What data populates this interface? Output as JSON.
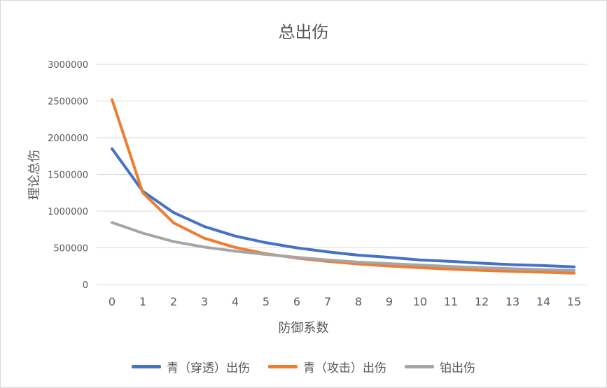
{
  "chart_data": {
    "type": "line",
    "title": "总出伤",
    "xlabel": "防御系数",
    "ylabel": "理论总伤",
    "x": [
      0,
      1,
      2,
      3,
      4,
      5,
      6,
      7,
      8,
      9,
      10,
      11,
      12,
      13,
      14,
      15
    ],
    "ylim": [
      0,
      3000000
    ],
    "yticks": [
      0,
      500000,
      1000000,
      1500000,
      2000000,
      2500000,
      3000000
    ],
    "ytick_labels": [
      "0",
      "500000",
      "1000000",
      "1500000",
      "2000000",
      "2500000",
      "3000000"
    ],
    "grid": true,
    "legend_position": "bottom",
    "series": [
      {
        "name": "青（穿透）出伤",
        "color": "#4472c4",
        "values": [
          1850000,
          1270000,
          980000,
          790000,
          660000,
          570000,
          500000,
          445000,
          400000,
          370000,
          335000,
          315000,
          290000,
          270000,
          258000,
          240000
        ]
      },
      {
        "name": "青（攻击）出伤",
        "color": "#ed7d31",
        "values": [
          2520000,
          1250000,
          840000,
          630000,
          505000,
          420000,
          360000,
          315000,
          280000,
          252000,
          230000,
          210000,
          193000,
          180000,
          168000,
          155000
        ]
      },
      {
        "name": "铂出伤",
        "color": "#a5a5a5",
        "values": [
          845000,
          700000,
          585000,
          510000,
          455000,
          410000,
          370000,
          335000,
          305000,
          285000,
          265000,
          245000,
          230000,
          215000,
          202000,
          190000
        ]
      }
    ]
  }
}
